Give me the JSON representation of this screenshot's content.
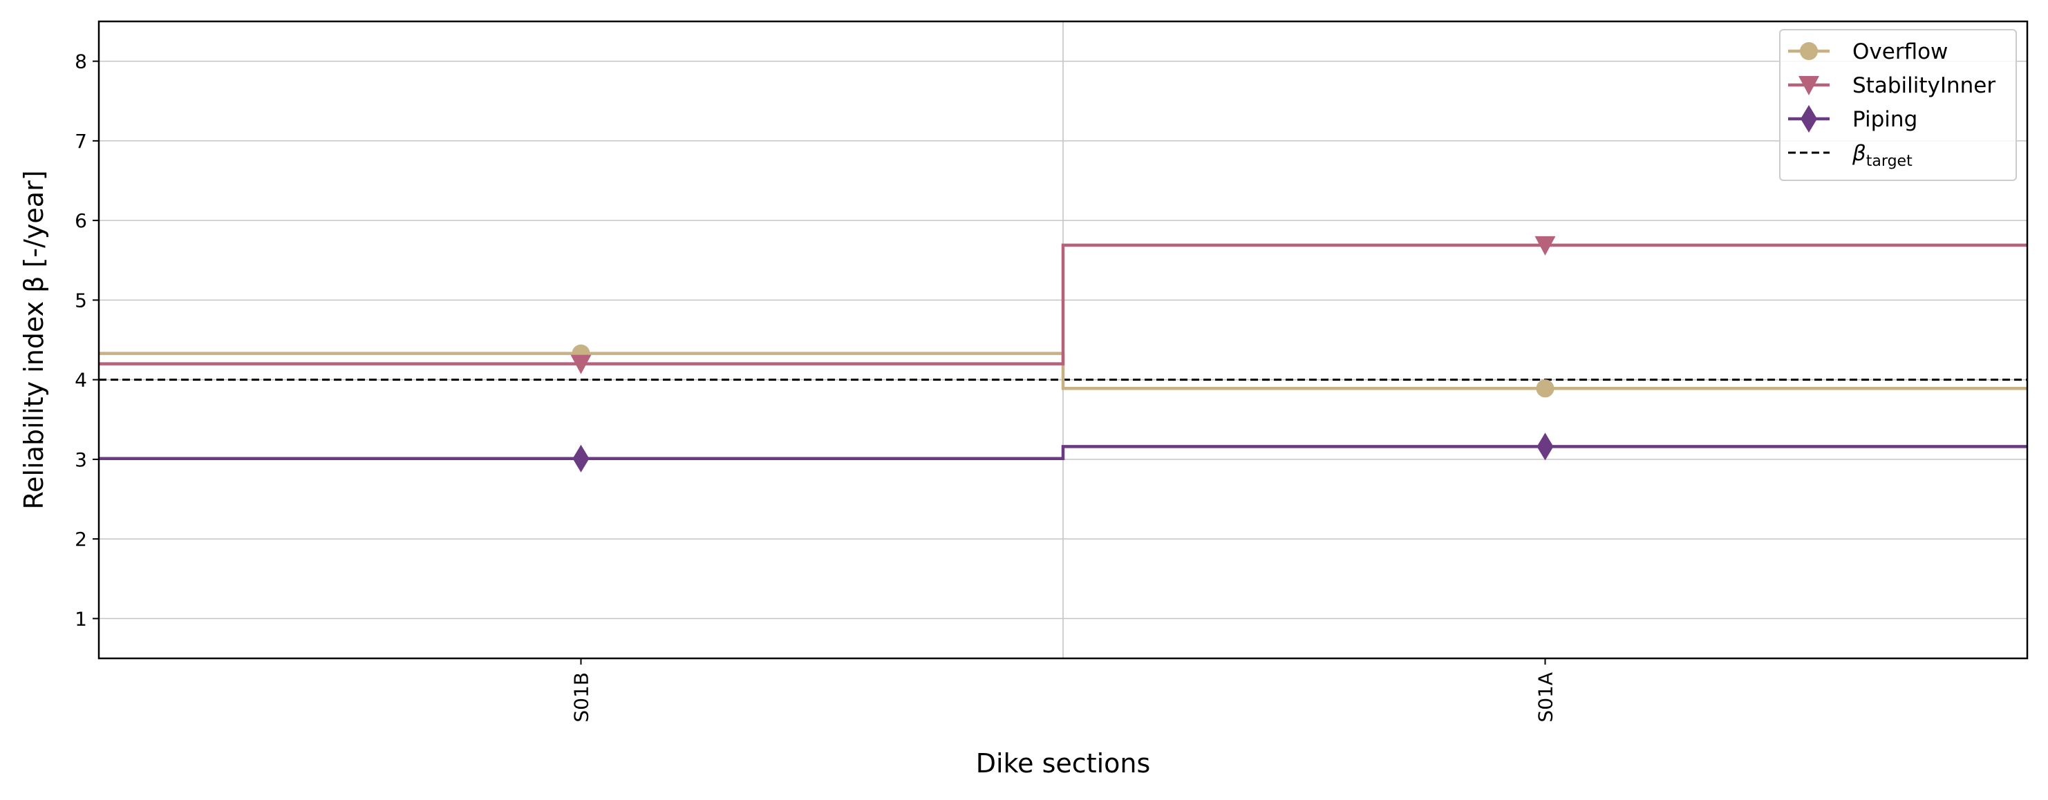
{
  "chart_data": {
    "type": "line",
    "step": "mid",
    "categories": [
      "S01B",
      "S01A"
    ],
    "series": [
      {
        "name": "Overflow",
        "values": [
          4.33,
          3.89
        ],
        "color": "#c8b183",
        "marker": "circle"
      },
      {
        "name": "StabilityInner",
        "values": [
          4.2,
          5.69
        ],
        "color": "#b6627a",
        "marker": "triangle-down"
      },
      {
        "name": "Piping",
        "values": [
          3.01,
          3.16
        ],
        "color": "#6a3b82",
        "marker": "diamond"
      }
    ],
    "reference_line": {
      "name_base": "β",
      "name_sub": "target",
      "value": 4.0,
      "color": "#000000",
      "style": "dashed"
    },
    "xlabel": "Dike sections",
    "ylabel": "Reliability index β [-/year]",
    "ylim": [
      0.5,
      8.5
    ],
    "yticks": [
      "1",
      "2",
      "3",
      "4",
      "5",
      "6",
      "7",
      "8"
    ],
    "grid": true,
    "legend_position": "top-right"
  }
}
